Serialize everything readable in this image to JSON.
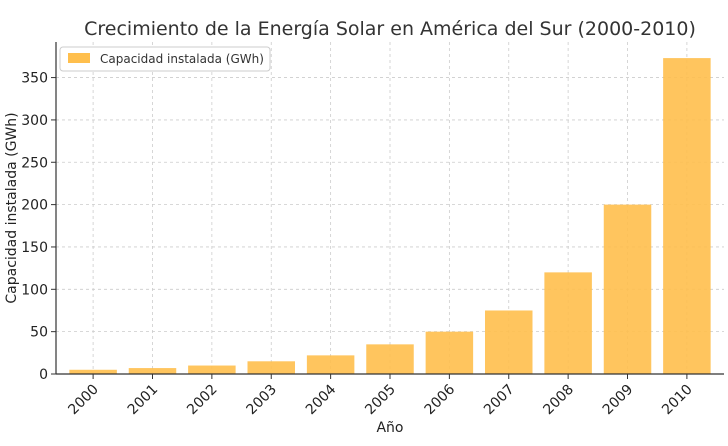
{
  "chart_data": {
    "type": "bar",
    "title": "Crecimiento de la Energía Solar en América del Sur (2000-2010)",
    "xlabel": "Año",
    "ylabel": "Capacidad instalada (GWh)",
    "categories": [
      "2000",
      "2001",
      "2002",
      "2003",
      "2004",
      "2005",
      "2006",
      "2007",
      "2008",
      "2009",
      "2010"
    ],
    "series": [
      {
        "name": "Capacidad instalada (GWh)",
        "values": [
          5,
          7,
          10,
          15,
          22,
          35,
          50,
          75,
          120,
          200,
          373
        ],
        "color": "#ffbf4d"
      }
    ],
    "ylim": [
      0,
      392
    ],
    "yticks": [
      0,
      50,
      100,
      150,
      200,
      250,
      300,
      350
    ],
    "grid": true,
    "legend_position": "top-left"
  }
}
